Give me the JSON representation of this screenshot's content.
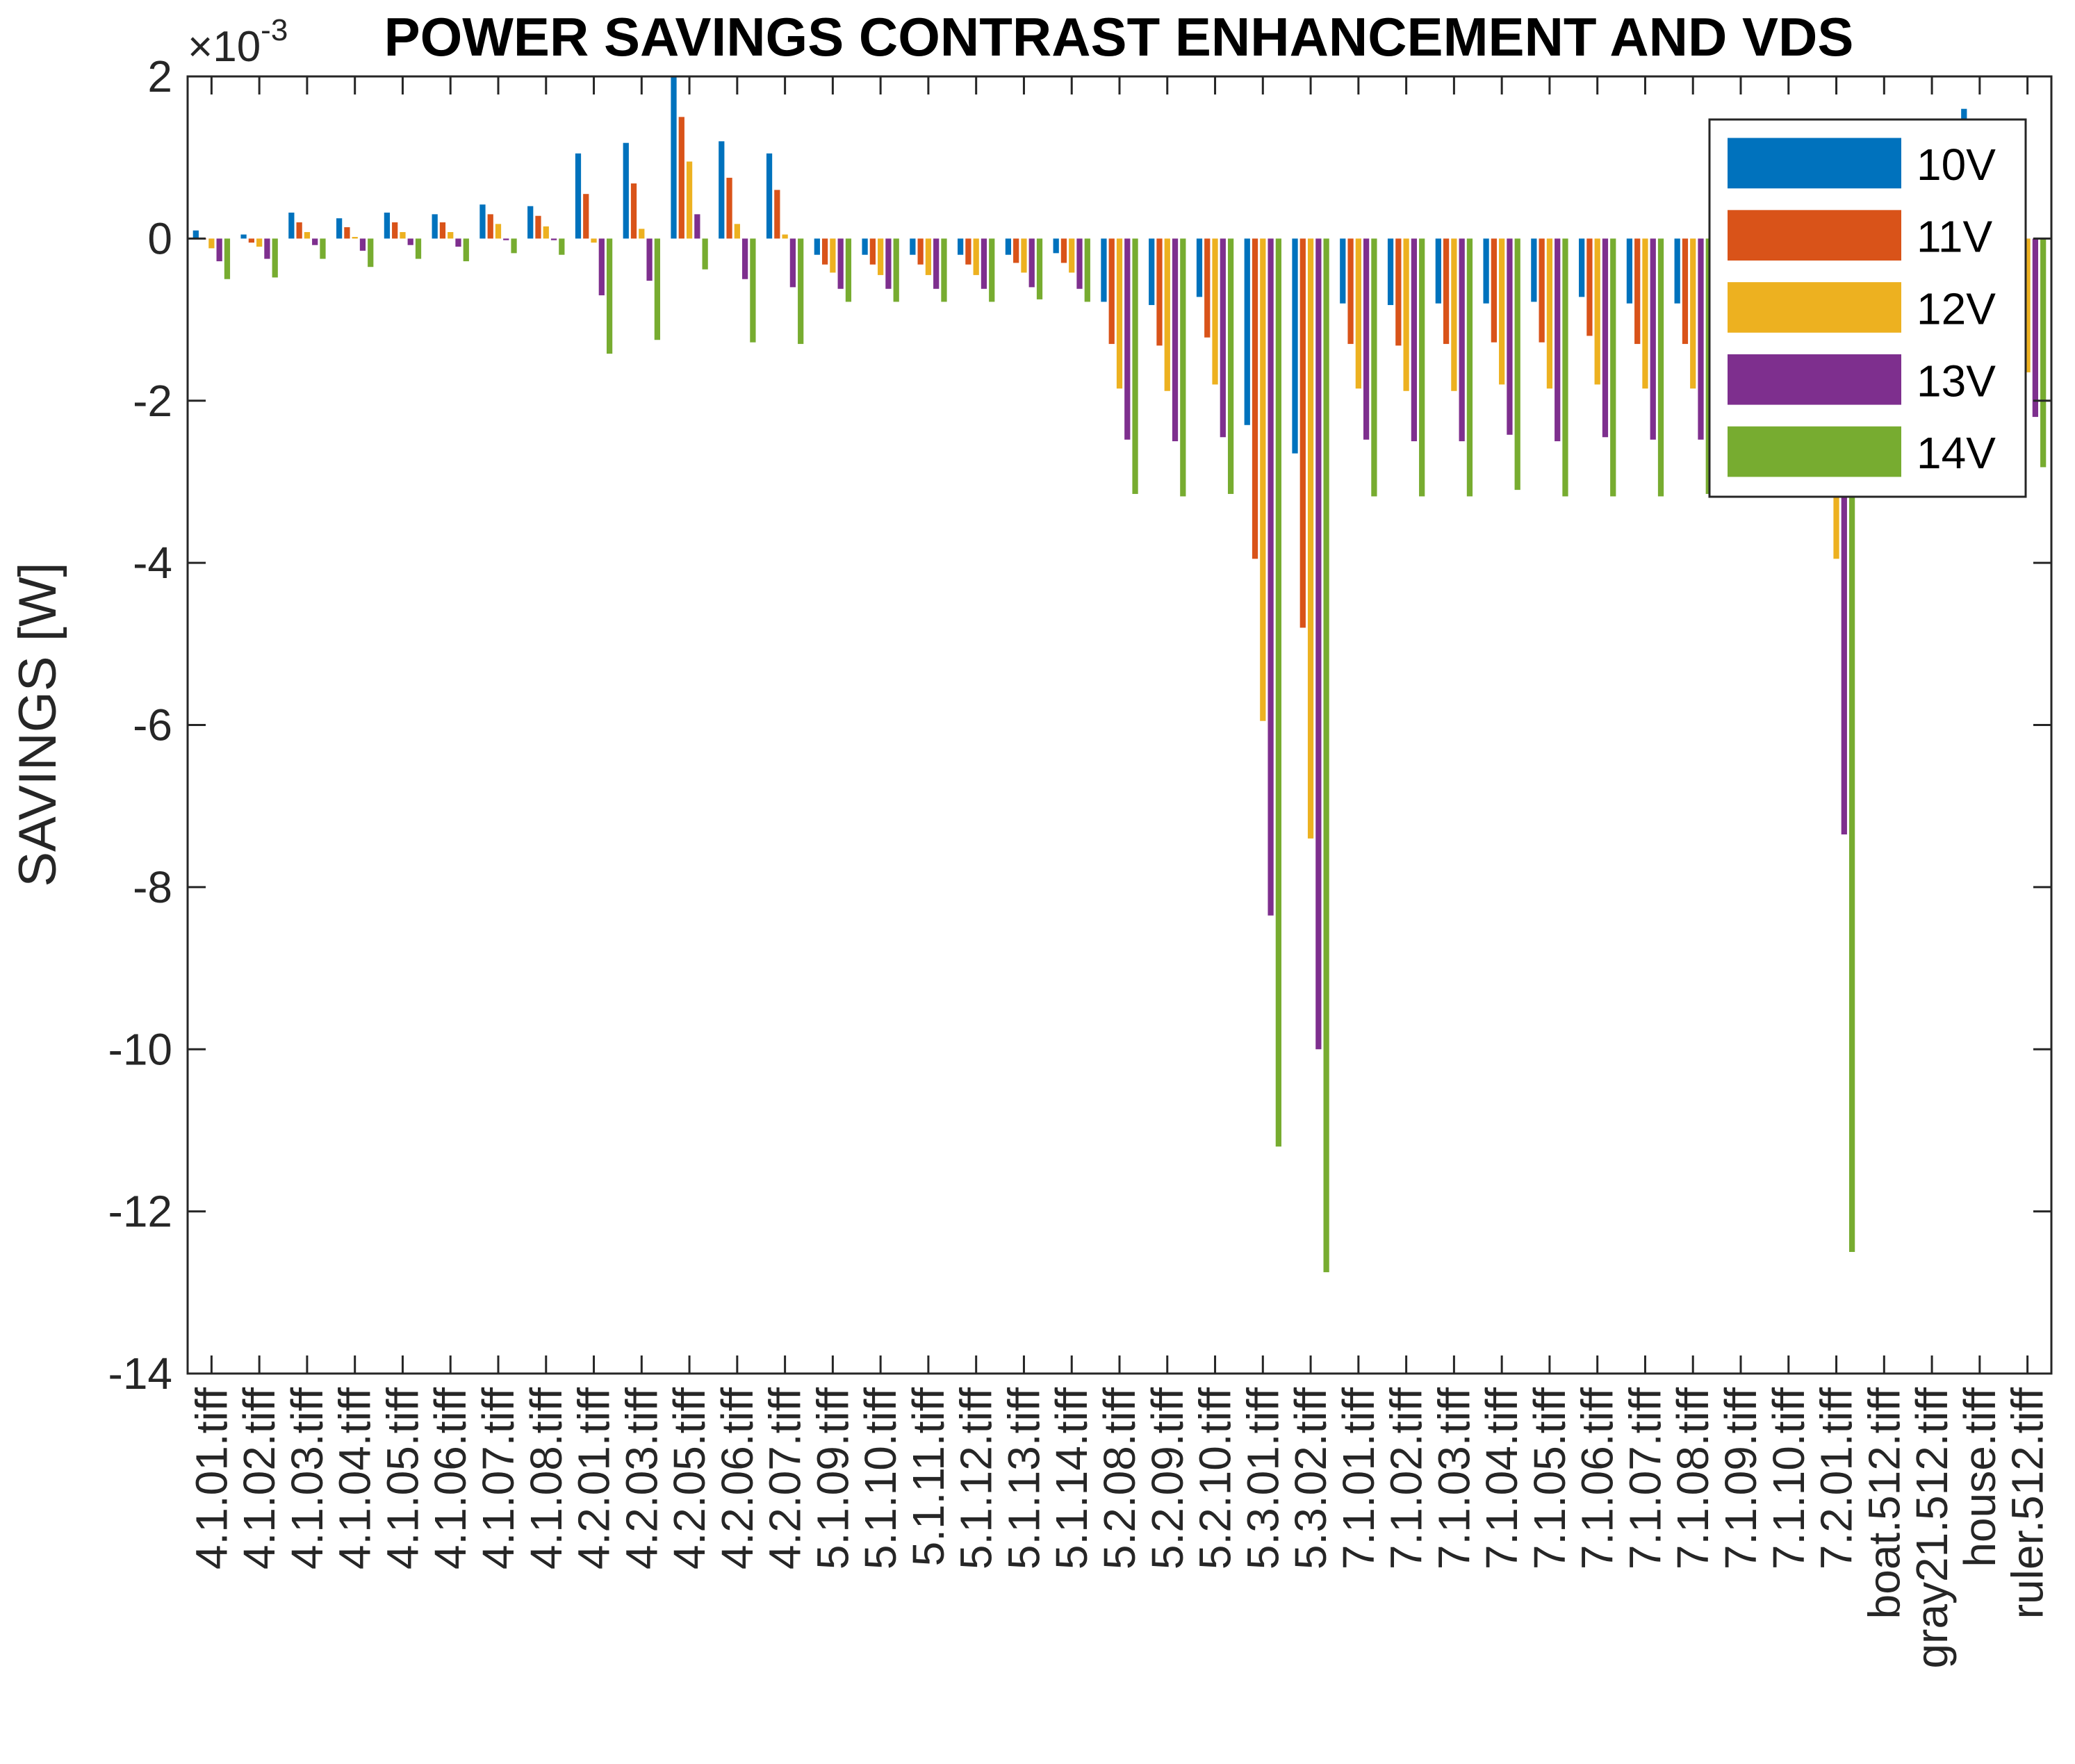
{
  "chart_data": {
    "type": "bar",
    "title": "POWER SAVINGS CONTRAST ENHANCEMENT AND VDS",
    "xlabel": "",
    "ylabel": "SAVINGS  [W]",
    "y_multiplier_prefix": "×10",
    "y_multiplier_exponent": "-3",
    "ylim": [
      -14,
      2
    ],
    "yticks": [
      2,
      0,
      -2,
      -4,
      -6,
      -8,
      -10,
      -12,
      -14
    ],
    "ytick_labels": [
      "2",
      "0",
      "-2",
      "-4",
      "-6",
      "-8",
      "-10",
      "-12",
      "-14"
    ],
    "grid": false,
    "legend_position": "top-right",
    "categories": [
      "4.1.01.tiff",
      "4.1.02.tiff",
      "4.1.03.tiff",
      "4.1.04.tiff",
      "4.1.05.tiff",
      "4.1.06.tiff",
      "4.1.07.tiff",
      "4.1.08.tiff",
      "4.2.01.tiff",
      "4.2.03.tiff",
      "4.2.05.tiff",
      "4.2.06.tiff",
      "4.2.07.tiff",
      "5.1.09.tiff",
      "5.1.10.tiff",
      "5.1.11.tiff",
      "5.1.12.tiff",
      "5.1.13.tiff",
      "5.1.14.tiff",
      "5.2.08.tiff",
      "5.2.09.tiff",
      "5.2.10.tiff",
      "5.3.01.tiff",
      "5.3.02.tiff",
      "7.1.01.tiff",
      "7.1.02.tiff",
      "7.1.03.tiff",
      "7.1.04.tiff",
      "7.1.05.tiff",
      "7.1.06.tiff",
      "7.1.07.tiff",
      "7.1.08.tiff",
      "7.1.09.tiff",
      "7.1.10.tiff",
      "7.2.01.tiff",
      "boat.512.tiff",
      "gray21.512.tiff",
      "house.tiff",
      "ruler.512.tiff"
    ],
    "series": [
      {
        "name": "10V",
        "color": "#0072BD",
        "values": [
          0.1,
          0.05,
          0.32,
          0.25,
          0.32,
          0.3,
          0.42,
          0.4,
          1.05,
          1.18,
          2.0,
          1.2,
          1.05,
          -0.2,
          -0.2,
          -0.2,
          -0.2,
          -0.2,
          -0.18,
          -0.78,
          -0.82,
          -0.72,
          -2.3,
          -2.65,
          -0.8,
          -0.82,
          -0.8,
          -0.8,
          -0.78,
          -0.72,
          -0.8,
          -0.8,
          -0.78,
          -0.78,
          -0.78,
          -0.78,
          -0.78,
          1.6,
          -0.72
        ]
      },
      {
        "name": "11V",
        "color": "#D95319",
        "values": [
          0.0,
          -0.05,
          0.2,
          0.14,
          0.2,
          0.2,
          0.3,
          0.28,
          0.55,
          0.68,
          1.5,
          0.75,
          0.6,
          -0.32,
          -0.32,
          -0.32,
          -0.32,
          -0.3,
          -0.3,
          -1.3,
          -1.32,
          -1.22,
          -3.95,
          -4.8,
          -1.3,
          -1.32,
          -1.3,
          -1.28,
          -1.28,
          -1.2,
          -1.3,
          -1.3,
          -1.28,
          -1.28,
          -2.4,
          -1.28,
          -1.28,
          0.0,
          -1.2
        ]
      },
      {
        "name": "12V",
        "color": "#EDB120",
        "values": [
          -0.12,
          -0.1,
          0.08,
          0.02,
          0.08,
          0.08,
          0.18,
          0.15,
          -0.05,
          0.12,
          0.95,
          0.18,
          0.05,
          -0.42,
          -0.45,
          -0.45,
          -0.45,
          -0.42,
          -0.42,
          -1.85,
          -1.88,
          -1.8,
          -5.95,
          -7.4,
          -1.85,
          -1.88,
          -1.88,
          -1.8,
          -1.85,
          -1.8,
          -1.85,
          -1.85,
          -1.85,
          -1.85,
          -3.95,
          -1.85,
          -1.85,
          -0.1,
          -1.65
        ]
      },
      {
        "name": "13V",
        "color": "#7E2F8E",
        "values": [
          -0.28,
          -0.25,
          -0.08,
          -0.15,
          -0.08,
          -0.1,
          -0.02,
          -0.02,
          -0.7,
          -0.52,
          0.3,
          -0.5,
          -0.6,
          -0.62,
          -0.62,
          -0.62,
          -0.62,
          -0.6,
          -0.62,
          -2.48,
          -2.5,
          -2.45,
          -8.35,
          -10.0,
          -2.48,
          -2.5,
          -2.5,
          -2.42,
          -2.5,
          -2.45,
          -2.48,
          -2.48,
          -2.48,
          -2.48,
          -7.35,
          -2.48,
          -2.48,
          -0.2,
          -2.2
        ]
      },
      {
        "name": "14V",
        "color": "#77AC30",
        "values": [
          -0.5,
          -0.48,
          -0.25,
          -0.35,
          -0.25,
          -0.28,
          -0.18,
          -0.2,
          -1.42,
          -1.25,
          -0.38,
          -1.28,
          -1.3,
          -0.78,
          -0.78,
          -0.78,
          -0.78,
          -0.75,
          -0.78,
          -3.15,
          -3.18,
          -3.15,
          -11.2,
          -12.75,
          -3.18,
          -3.18,
          -3.18,
          -3.1,
          -3.18,
          -3.18,
          -3.18,
          -3.15,
          -3.15,
          -3.15,
          -12.5,
          -3.15,
          -3.15,
          -0.3,
          -2.82
        ]
      }
    ]
  }
}
